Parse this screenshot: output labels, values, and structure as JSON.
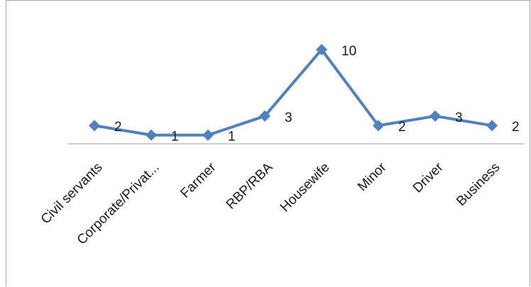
{
  "chart_data": {
    "type": "line",
    "title": "",
    "xlabel": "",
    "ylabel": "",
    "categories": [
      "Civil servants",
      "Corporate/Privat...",
      "Farmer",
      "RBP/RBA",
      "Housewife",
      "Minor",
      "Driver",
      "Business"
    ],
    "series": [
      {
        "values": [
          2,
          1,
          1,
          3,
          10,
          2,
          3,
          2
        ]
      }
    ],
    "data_labels": [
      "2",
      "1",
      "1",
      "3",
      "10",
      "2",
      "3",
      "2"
    ],
    "ylim": [
      0,
      10
    ],
    "grid": false,
    "legend": "none",
    "marker": "diamond",
    "colors": {
      "line": "#4f81bd",
      "axis": "#9e9e9e",
      "frame": "#a6a6a6",
      "text": "#1a1a1a"
    }
  }
}
